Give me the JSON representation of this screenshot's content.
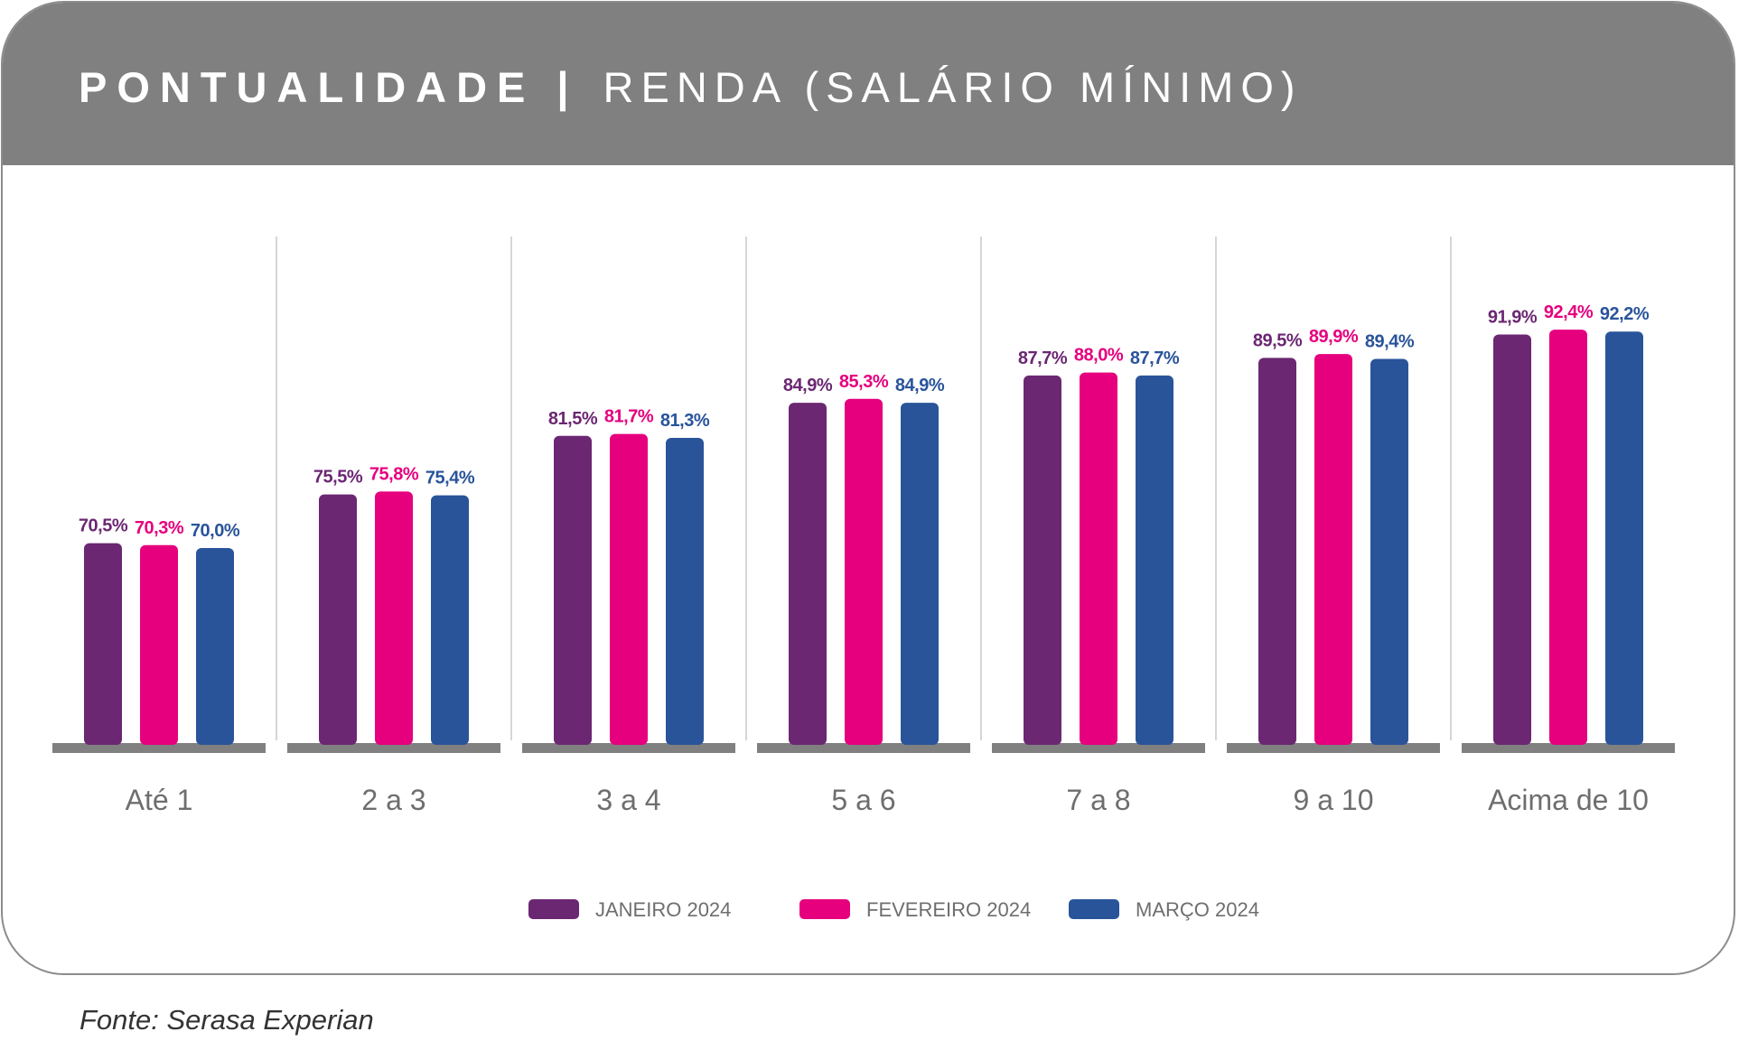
{
  "header": {
    "title_bold": "PONTUALIDADE",
    "separator": "|",
    "title_light": "RENDA (SALÁRIO MÍNIMO)"
  },
  "chart_data": {
    "type": "bar",
    "categories": [
      "Até 1",
      "2 a 3",
      "3 a 4",
      "5 a 6",
      "7 a 8",
      "9 a 10",
      "Acima de 10"
    ],
    "series": [
      {
        "name": "JANEIRO 2024",
        "color": "#6b2772",
        "values": [
          70.5,
          75.5,
          81.5,
          84.9,
          87.7,
          89.5,
          91.9
        ],
        "labels": [
          "70,5%",
          "75,5%",
          "81,5%",
          "84,9%",
          "87,7%",
          "89,5%",
          "91,9%"
        ]
      },
      {
        "name": "FEVEREIRO 2024",
        "color": "#e6007e",
        "values": [
          70.3,
          75.8,
          81.7,
          85.3,
          88.0,
          89.9,
          92.4
        ],
        "labels": [
          "70,3%",
          "75,8%",
          "81,7%",
          "85,3%",
          "88,0%",
          "89,9%",
          "92,4%"
        ]
      },
      {
        "name": "MARÇO 2024",
        "color": "#29549a",
        "values": [
          70.0,
          75.4,
          81.3,
          84.9,
          87.7,
          89.4,
          92.2
        ],
        "labels": [
          "70,0%",
          "75,4%",
          "81,3%",
          "84,9%",
          "87,7%",
          "89,4%",
          "92,2%"
        ]
      }
    ],
    "value_format": "percent with comma decimal",
    "grid": false,
    "legend_position": "bottom-center"
  },
  "source": "Fonte: Serasa Experian"
}
